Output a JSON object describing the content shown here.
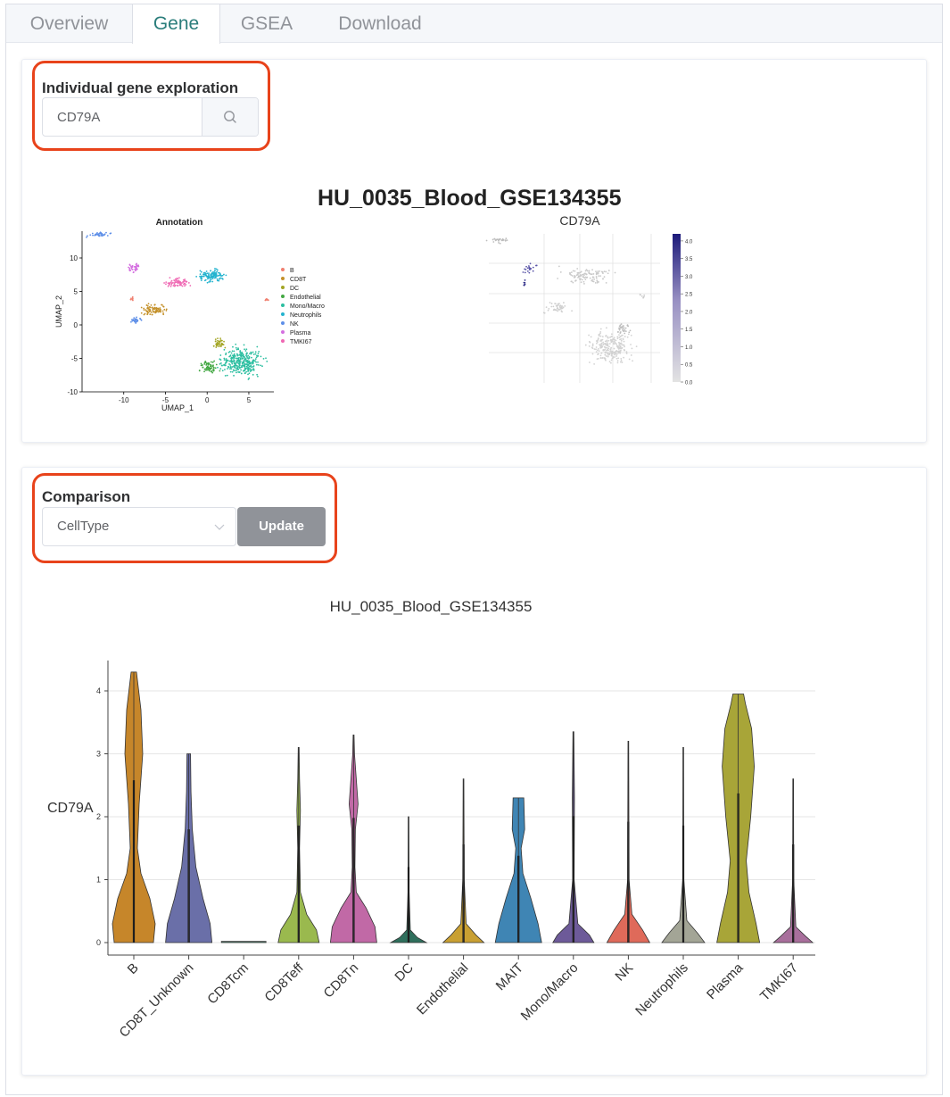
{
  "tabs": [
    {
      "label": "Overview"
    },
    {
      "label": "Gene"
    },
    {
      "label": "GSEA"
    },
    {
      "label": "Download"
    }
  ],
  "gene_section": {
    "label": "Individual gene exploration",
    "search_value": "CD79A",
    "search_placeholder": "",
    "dataset_title": "HU_0035_Blood_GSE134355"
  },
  "comparison_section": {
    "label": "Comparison",
    "select_value": "CellType",
    "update_label": "Update"
  },
  "colors": {
    "active_tab": "#2a7d7b",
    "highlight": "#e8431b",
    "update_button": "#909399"
  },
  "chart_data": [
    {
      "type": "scatter",
      "title": "Annotation",
      "xlabel": "UMAP_1",
      "ylabel": "UMAP_2",
      "xlim": [
        -15,
        8
      ],
      "ylim": [
        -10,
        14
      ],
      "xticks": [
        -10,
        -5,
        0,
        5
      ],
      "yticks": [
        -10,
        -5,
        0,
        5,
        10
      ],
      "legend_position": "right",
      "series": [
        {
          "name": "B",
          "color": "#f07f6f"
        },
        {
          "name": "CD8T",
          "color": "#c4912a"
        },
        {
          "name": "DC",
          "color": "#a3a524"
        },
        {
          "name": "Endothelial",
          "color": "#43a843"
        },
        {
          "name": "Mono/Macro",
          "color": "#2bbea0"
        },
        {
          "name": "Neutrophils",
          "color": "#23b3cf"
        },
        {
          "name": "NK",
          "color": "#5e8fe8"
        },
        {
          "name": "Plasma",
          "color": "#d46fe0"
        },
        {
          "name": "TMKI67",
          "color": "#ef68b3"
        }
      ]
    },
    {
      "type": "scatter",
      "title": "CD79A",
      "colorbar_ticks": [
        "4.0",
        "3.5",
        "3.0",
        "2.5",
        "2.0",
        "1.5",
        "1.0",
        "0.5",
        "0.0"
      ],
      "colorbar_range": [
        0,
        4.2
      ],
      "grid": true
    },
    {
      "type": "violin",
      "title": "HU_0035_Blood_GSE134355",
      "ylabel": "CD79A",
      "ylim": [
        0,
        4.3
      ],
      "yticks": [
        0,
        1,
        2,
        3,
        4
      ],
      "grid": true,
      "categories": [
        "B",
        "CD8T_Unknown",
        "CD8Tcm",
        "CD8Teff",
        "CD8Tn",
        "DC",
        "Endothelial",
        "MAIT",
        "Mono/Macro",
        "NK",
        "Neutrophils",
        "Plasma",
        "TMKI67"
      ],
      "colors": [
        "#c6862a",
        "#6a6fa8",
        "#4e7a6a",
        "#9ab94e",
        "#c169a6",
        "#2f6f5c",
        "#c9a032",
        "#3f85b4",
        "#6d5a99",
        "#df6a5a",
        "#a3a596",
        "#a8a538",
        "#a86f9c"
      ],
      "max_values": [
        4.3,
        3.0,
        0.0,
        3.1,
        3.3,
        2.0,
        2.6,
        2.3,
        3.35,
        3.2,
        3.1,
        3.95,
        2.6
      ]
    }
  ]
}
